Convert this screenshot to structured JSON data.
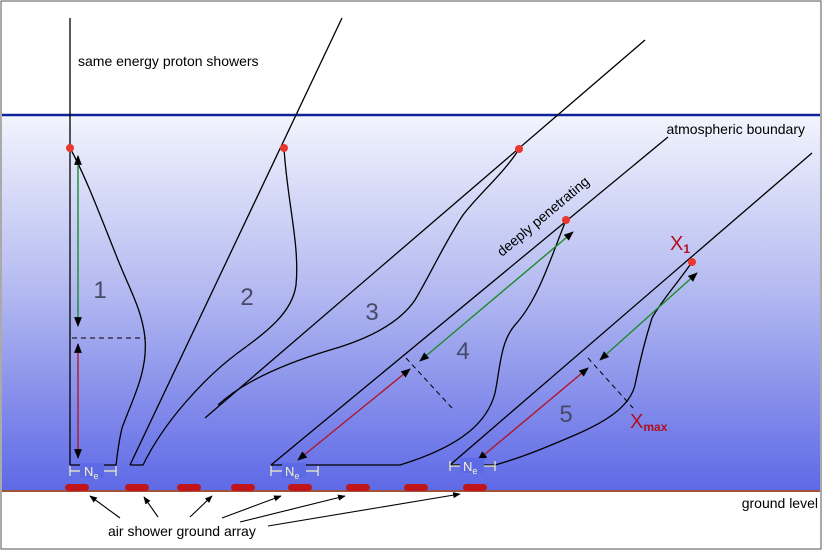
{
  "labels": {
    "title": "same energy proton showers",
    "atmospheric_boundary": "atmospheric boundary",
    "ground_level": "ground level",
    "ground_array": "air shower ground array",
    "deeply_penetrating": "deeply penetrating",
    "x1": "X",
    "x1_sub": "1",
    "xmax": "X",
    "xmax_sub": "max",
    "ne": "N",
    "ne_sub": "e"
  },
  "showers": [
    {
      "label": "1"
    },
    {
      "label": "2"
    },
    {
      "label": "3"
    },
    {
      "label": "4"
    },
    {
      "label": "5"
    }
  ],
  "colors": {
    "sky_top": "#f2f4fd",
    "sky_bottom": "#5e69e6",
    "boundary_line": "#0f2398",
    "ground_line": "#a0523a",
    "interaction_point": "#e8382f",
    "detector": "#c0161b",
    "arrow_green": "#1d8a2c",
    "arrow_red": "#b0172a",
    "marker_text": "#b0101c",
    "shower_number": "#474a66",
    "ne_label": "#f4f0c8"
  }
}
